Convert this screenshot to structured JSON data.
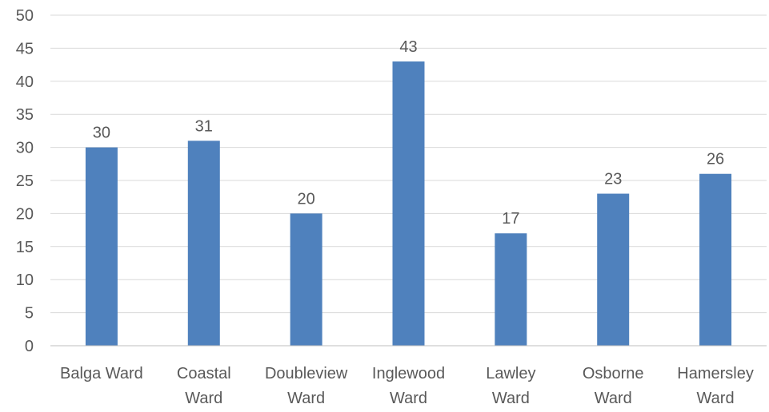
{
  "chart_data": {
    "type": "bar",
    "title": "",
    "xlabel": "",
    "ylabel": "",
    "categories": [
      [
        "Balga Ward"
      ],
      [
        "Coastal",
        "Ward"
      ],
      [
        "Doubleview",
        "Ward"
      ],
      [
        "Inglewood",
        "Ward"
      ],
      [
        "Lawley",
        "Ward"
      ],
      [
        "Osborne",
        "Ward"
      ],
      [
        "Hamersley",
        "Ward"
      ]
    ],
    "values": [
      30,
      31,
      20,
      43,
      17,
      23,
      26
    ],
    "ylim": [
      0,
      50
    ],
    "yticks": [
      0,
      5,
      10,
      15,
      20,
      25,
      30,
      35,
      40,
      45,
      50
    ],
    "grid": true,
    "legend": "none",
    "data_labels": true,
    "bar_color": "#4f81bd"
  }
}
